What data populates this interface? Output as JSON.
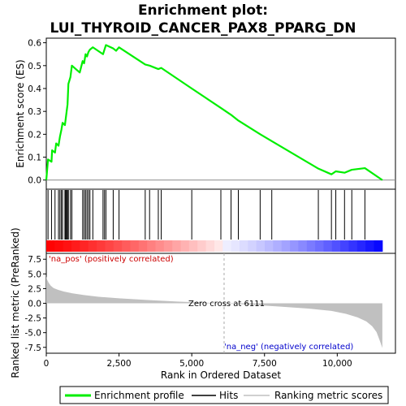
{
  "chart_data": {
    "title": "Enrichment plot: LUI_THYROID_CANCER_PAX8_PPARG_DN",
    "title_line1": "Enrichment plot:",
    "title_line2": "LUI_THYROID_CANCER_PAX8_PPARG_DN",
    "type": "line",
    "panels": {
      "es": {
        "ylabel": "Enrichment score (ES)",
        "ylim": [
          -0.04,
          0.62
        ],
        "yticks": [
          0.0,
          0.1,
          0.2,
          0.3,
          0.4,
          0.5,
          0.6
        ],
        "ytick_labels": [
          "0.0",
          "0.1",
          "0.2",
          "0.3",
          "0.4",
          "0.5",
          "0.6"
        ],
        "series": [
          {
            "name": "Enrichment profile",
            "color": "#00ee00",
            "x": [
              0,
              60,
              180,
              200,
              300,
              340,
              420,
              470,
              520,
              560,
              640,
              670,
              700,
              730,
              760,
              830,
              880,
              1150,
              1250,
              1300,
              1350,
              1400,
              1450,
              1500,
              1600,
              1950,
              2000,
              2050,
              2300,
              2400,
              2500,
              3400,
              3550,
              3850,
              3950,
              5000,
              6000,
              6350,
              6600,
              7350,
              7750,
              9350,
              9800,
              9950,
              10250,
              10500,
              10950,
              11550
            ],
            "y": [
              0.0,
              0.09,
              0.08,
              0.13,
              0.12,
              0.16,
              0.15,
              0.19,
              0.22,
              0.25,
              0.24,
              0.27,
              0.3,
              0.33,
              0.42,
              0.45,
              0.5,
              0.47,
              0.52,
              0.51,
              0.55,
              0.54,
              0.56,
              0.57,
              0.58,
              0.55,
              0.57,
              0.59,
              0.575,
              0.565,
              0.58,
              0.505,
              0.5,
              0.485,
              0.49,
              0.4,
              0.315,
              0.285,
              0.26,
              0.2,
              0.17,
              0.05,
              0.025,
              0.038,
              0.032,
              0.045,
              0.052,
              0.0
            ]
          }
        ]
      },
      "hits": {
        "name": "Hits",
        "positions": [
          60,
          180,
          300,
          420,
          470,
          520,
          560,
          640,
          670,
          700,
          730,
          760,
          830,
          880,
          1250,
          1300,
          1350,
          1400,
          1450,
          1500,
          1600,
          1950,
          2000,
          2050,
          2300,
          2500,
          3400,
          3550,
          3850,
          3950,
          5000,
          6000,
          6350,
          6600,
          7350,
          7750,
          9350,
          9800,
          9950,
          10250,
          10500,
          10950
        ]
      },
      "ranked": {
        "ylabel": "Ranked list metric (PreRanked)",
        "ylim": [
          -8.5,
          8.5
        ],
        "yticks": [
          7.5,
          5.0,
          2.5,
          0.0,
          -2.5,
          -5.0,
          -7.5
        ],
        "ytick_labels": [
          "7.5",
          "5.0",
          "2.5",
          "0.0",
          "-2.5",
          "-5.0",
          "-7.5"
        ],
        "series": [
          {
            "name": "Ranking metric scores",
            "color": "#c0c0c0",
            "x": [
              0,
              30,
              80,
              150,
              250,
              400,
              600,
              900,
              1300,
              1800,
              2500,
              3500,
              4500,
              5500,
              6111,
              7000,
              8000,
              9000,
              9800,
              10300,
              10700,
              11000,
              11200,
              11350,
              11450,
              11550
            ],
            "y": [
              4.6,
              4.0,
              3.5,
              3.0,
              2.6,
              2.3,
              2.0,
              1.7,
              1.4,
              1.1,
              0.85,
              0.55,
              0.3,
              0.1,
              0.0,
              -0.25,
              -0.55,
              -0.9,
              -1.3,
              -1.8,
              -2.4,
              -3.1,
              -3.9,
              -4.9,
              -6.2,
              -7.6
            ]
          }
        ]
      }
    },
    "xlabel": "Rank in Ordered Dataset",
    "xlim": [
      0,
      12000
    ],
    "xticks": [
      0,
      2500,
      5000,
      7500,
      10000
    ],
    "xtick_labels": [
      "0",
      "2,500",
      "5,000",
      "7,500",
      "10,000"
    ],
    "list_size": 11550,
    "zero_cross": 6111,
    "annotations": {
      "pos_label": "'na_pos' (positively correlated)",
      "neg_label": "'na_neg' (negatively correlated)",
      "zero_cross_label": "Zero cross at 6111"
    },
    "legend": {
      "placement": "bottom",
      "entries": [
        "Enrichment profile",
        "Hits",
        "Ranking metric scores"
      ]
    },
    "colors": {
      "profile": "#00ee00",
      "hits": "#000000",
      "metric": "#c0c0c0",
      "pos": "#ff0000",
      "neg": "#0000ff"
    }
  }
}
